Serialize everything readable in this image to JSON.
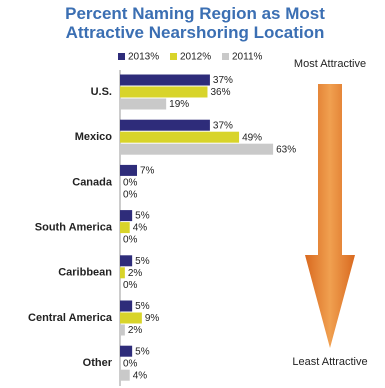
{
  "chart_data": {
    "type": "bar",
    "orientation": "horizontal",
    "title": "Percent Naming Region as Most Attractive Nearshoring Location",
    "categories": [
      "U.S.",
      "Mexico",
      "Canada",
      "South America",
      "Caribbean",
      "Central America",
      "Other"
    ],
    "series": [
      {
        "name": "2013%",
        "color": "#2e2c7a",
        "values": [
          37,
          37,
          7,
          5,
          5,
          5,
          5
        ],
        "value_labels": [
          "37%",
          "37%",
          "7%",
          "5%",
          "5%",
          "5%",
          "5%"
        ]
      },
      {
        "name": "2012%",
        "color": "#d8d42a",
        "values": [
          36,
          49,
          0,
          4,
          2,
          9,
          0
        ],
        "value_labels": [
          "36%",
          "49%",
          "0%",
          "4%",
          "2%",
          "9%",
          "0%"
        ]
      },
      {
        "name": "2011%",
        "color": "#c9c9c9",
        "values": [
          19,
          63,
          0,
          0,
          0,
          2,
          4
        ],
        "value_labels": [
          "19%",
          "63%",
          "0%",
          "0%",
          "0%",
          "2%",
          "4%"
        ]
      }
    ],
    "annotations": [
      "Most Attractive",
      "Least Attractive"
    ]
  }
}
